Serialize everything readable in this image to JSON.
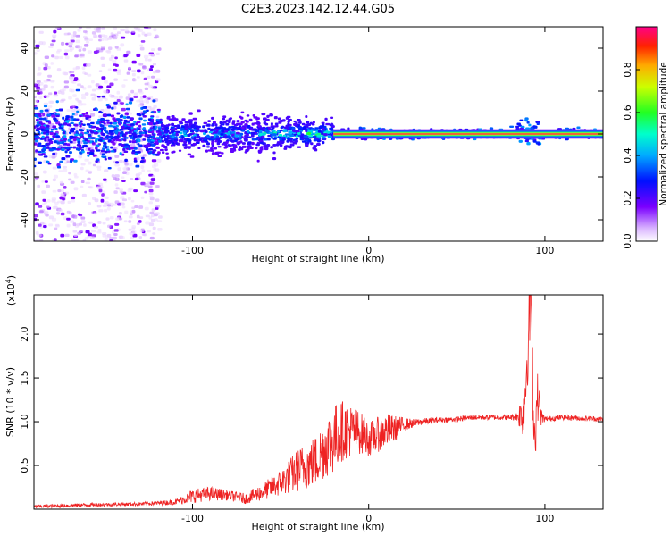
{
  "title": "C2E3.2023.142.12.44.G05",
  "chart_data": [
    {
      "type": "heatmap",
      "title": "C2E3.2023.142.12.44.G05",
      "xlabel": "Height of straight line (km)",
      "ylabel": "Frequency (Hz)",
      "xlim": [
        -190,
        133
      ],
      "ylim": [
        -50,
        50
      ],
      "xticks": [
        -100,
        0,
        100
      ],
      "yticks": [
        -40,
        -20,
        0,
        20,
        40
      ],
      "grid": false,
      "colorbar": {
        "label": "Normalized spectral amplitude",
        "range": [
          0,
          1
        ],
        "ticks": [
          0.0,
          0.2,
          0.4,
          0.6,
          0.8
        ],
        "tick_labels": [
          "0.0",
          "0.2",
          "0.4",
          "0.6",
          "0.8"
        ]
      },
      "features": {
        "diffuse_noise_x": [
          -190,
          -118
        ],
        "main_band_start_x": -118,
        "converged_line_from_x": -20,
        "disturbance_x": [
          84,
          97
        ]
      },
      "colors": {
        "low": "#e8d6ff",
        "mid_low": "#6a00ff",
        "mid": "#0040ff",
        "mid_high": "#00ffaa",
        "high": "#ff0050"
      }
    },
    {
      "type": "line",
      "xlabel": "Height of straight line (km)",
      "ylabel": "SNR (10 * v/v)",
      "y_multiplier": "(x10",
      "y_multiplier_exp": "4",
      "y_multiplier_close": ")",
      "xlim": [
        -190,
        133
      ],
      "ylim": [
        0,
        2.45
      ],
      "xticks": [
        -100,
        0,
        100
      ],
      "yticks": [
        0.5,
        1.0,
        1.5,
        2.0
      ],
      "ytick_labels": [
        "0.5",
        "1.0",
        "1.5",
        "2.0"
      ],
      "grid": false,
      "series": [
        {
          "color": "#ee2222",
          "x": [
            -190,
            -160,
            -130,
            -110,
            -100,
            -90,
            -80,
            -70,
            -60,
            -50,
            -40,
            -30,
            -25,
            -20,
            -15,
            -10,
            -5,
            0,
            5,
            10,
            15,
            20,
            25,
            30,
            40,
            50,
            60,
            70,
            80,
            84,
            88,
            92,
            94,
            96,
            98,
            100,
            110,
            120,
            133
          ],
          "y": [
            0.03,
            0.05,
            0.06,
            0.08,
            0.15,
            0.18,
            0.16,
            0.12,
            0.2,
            0.3,
            0.45,
            0.55,
            0.7,
            0.8,
            0.9,
            0.9,
            0.88,
            0.8,
            0.85,
            0.9,
            0.92,
            0.97,
            0.98,
            1.0,
            1.02,
            1.03,
            1.05,
            1.05,
            1.05,
            1.06,
            1.1,
            2.4,
            0.8,
            1.3,
            1.05,
            1.03,
            1.05,
            1.04,
            1.03
          ],
          "noise_amplitude": [
            0.02,
            0.02,
            0.02,
            0.03,
            0.08,
            0.08,
            0.06,
            0.06,
            0.1,
            0.15,
            0.25,
            0.3,
            0.35,
            0.4,
            0.35,
            0.3,
            0.25,
            0.2,
            0.2,
            0.2,
            0.15,
            0.08,
            0.05,
            0.04,
            0.03,
            0.03,
            0.03,
            0.03,
            0.03,
            0.05,
            0.3,
            0.5,
            0.4,
            0.3,
            0.1,
            0.03,
            0.03,
            0.03,
            0.03
          ]
        }
      ]
    }
  ]
}
